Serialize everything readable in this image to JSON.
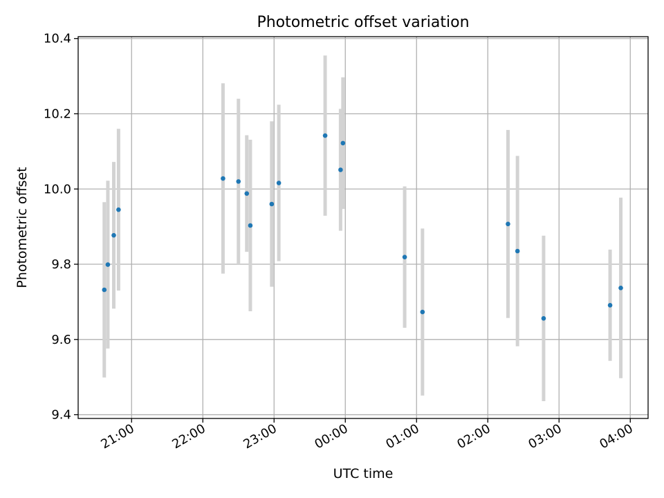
{
  "chart_data": {
    "type": "scatter",
    "title": "Photometric offset variation",
    "xlabel": "UTC time",
    "ylabel": "Photometric offset",
    "x_unit": "UTC time (hours past 00:00; 20.x-23.x = previous evening)",
    "xlim": [
      "20:15",
      "04:15"
    ],
    "ylim": [
      9.39,
      10.405
    ],
    "x_ticks": [
      "21:00",
      "22:00",
      "23:00",
      "00:00",
      "01:00",
      "02:00",
      "03:00",
      "04:00"
    ],
    "y_ticks": [
      "9.4",
      "9.6",
      "9.8",
      "10.0",
      "10.2",
      "10.4"
    ],
    "grid": true,
    "marker_color": "#1f77b4",
    "errorbar_color": "#d3d3d3",
    "points": [
      {
        "x": "20:37",
        "y": 9.732,
        "yerr": 0.233
      },
      {
        "x": "20:40",
        "y": 9.799,
        "yerr": 0.223
      },
      {
        "x": "20:45",
        "y": 9.877,
        "yerr": 0.195
      },
      {
        "x": "20:49",
        "y": 9.945,
        "yerr": 0.215
      },
      {
        "x": "22:17",
        "y": 10.028,
        "yerr": 0.253
      },
      {
        "x": "22:30",
        "y": 10.02,
        "yerr": 0.22
      },
      {
        "x": "22:37",
        "y": 9.988,
        "yerr": 0.155
      },
      {
        "x": "22:40",
        "y": 9.903,
        "yerr": 0.228
      },
      {
        "x": "22:58",
        "y": 9.96,
        "yerr": 0.22
      },
      {
        "x": "23:04",
        "y": 10.016,
        "yerr": 0.208
      },
      {
        "x": "23:43",
        "y": 10.142,
        "yerr": 0.213
      },
      {
        "x": "23:56",
        "y": 10.051,
        "yerr": 0.162
      },
      {
        "x": "23:58",
        "y": 10.122,
        "yerr": 0.175
      },
      {
        "x": "00:50",
        "y": 9.819,
        "yerr": 0.188
      },
      {
        "x": "01:05",
        "y": 9.673,
        "yerr": 0.222
      },
      {
        "x": "02:17",
        "y": 9.907,
        "yerr": 0.25
      },
      {
        "x": "02:25",
        "y": 9.835,
        "yerr": 0.253
      },
      {
        "x": "02:47",
        "y": 9.656,
        "yerr": 0.22
      },
      {
        "x": "03:43",
        "y": 9.691,
        "yerr": 0.148
      },
      {
        "x": "03:52",
        "y": 9.737,
        "yerr": 0.24
      }
    ]
  }
}
